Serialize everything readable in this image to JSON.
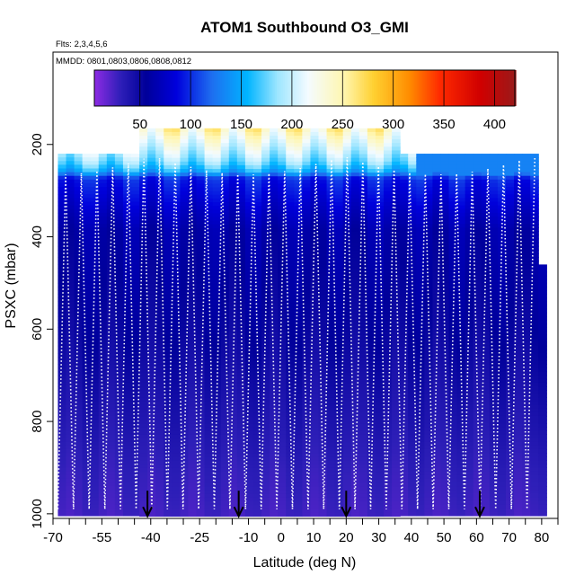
{
  "chart_data": {
    "type": "heatmap",
    "title": "ATOM1 Southbound O3_GMI",
    "subtitle_flights": "Flts: 2,3,4,5,6",
    "subtitle_dates": "MMDD: 0801,0803,0806,0808,0812",
    "xlabel": "Latitude (deg N)",
    "ylabel": "PSXC (mbar)",
    "xlim": [
      -70,
      85
    ],
    "ylim": [
      1010,
      0
    ],
    "x_tick_labels": [
      "-70",
      "-55",
      "-40",
      "-25",
      "-10",
      "0",
      "10",
      "20",
      "30",
      "40",
      "50",
      "60",
      "70",
      "80"
    ],
    "x_tick_values": [
      -70,
      -55,
      -40,
      -25,
      -10,
      0,
      10,
      20,
      30,
      40,
      50,
      60,
      70,
      80
    ],
    "x_minor_ticks": [
      -65,
      -60,
      -50,
      -45,
      -35,
      -30,
      -20,
      -15,
      -5,
      5,
      15,
      25,
      35,
      45,
      55,
      65,
      75,
      85
    ],
    "y_tick_labels": [
      "200",
      "400",
      "600",
      "800",
      "1000"
    ],
    "y_tick_values": [
      200,
      400,
      600,
      800,
      1000
    ],
    "colorbar": {
      "min": 5,
      "max": 420,
      "tick_values": [
        50,
        100,
        150,
        200,
        250,
        300,
        350,
        400
      ],
      "tick_labels": [
        "50",
        "100",
        "150",
        "200",
        "250",
        "300",
        "350",
        "400"
      ],
      "color_stops": [
        {
          "v": 5,
          "c": "#8a2be2"
        },
        {
          "v": 30,
          "c": "#2e1fb8"
        },
        {
          "v": 55,
          "c": "#00009a"
        },
        {
          "v": 85,
          "c": "#0000dc"
        },
        {
          "v": 120,
          "c": "#1e6ef0"
        },
        {
          "v": 155,
          "c": "#00b4ff"
        },
        {
          "v": 185,
          "c": "#9ee6ff"
        },
        {
          "v": 215,
          "c": "#f4fbff"
        },
        {
          "v": 250,
          "c": "#fff6b0"
        },
        {
          "v": 280,
          "c": "#ffd030"
        },
        {
          "v": 315,
          "c": "#ff8c00"
        },
        {
          "v": 345,
          "c": "#ff2a00"
        },
        {
          "v": 385,
          "c": "#d00000"
        },
        {
          "v": 420,
          "c": "#9a1a1a"
        }
      ]
    },
    "flight_track_color": "#ffffff",
    "profile_arrow_latitudes": [
      -41,
      -13,
      20,
      61
    ],
    "curtain": {
      "lat_start": -68.5,
      "lat_end": 79.5,
      "top_pressure_default": 220,
      "top_pressure_segment": {
        "from": -45,
        "to": 35,
        "p": 165
      },
      "value_profile": [
        {
          "p": 165,
          "v": 240
        },
        {
          "p": 235,
          "v": 180
        },
        {
          "p": 255,
          "v": 150
        },
        {
          "p": 270,
          "v": 95
        },
        {
          "p": 380,
          "v": 62
        },
        {
          "p": 600,
          "v": 52
        },
        {
          "p": 760,
          "v": 40
        },
        {
          "p": 900,
          "v": 30
        },
        {
          "p": 1000,
          "v": 25
        }
      ]
    }
  }
}
